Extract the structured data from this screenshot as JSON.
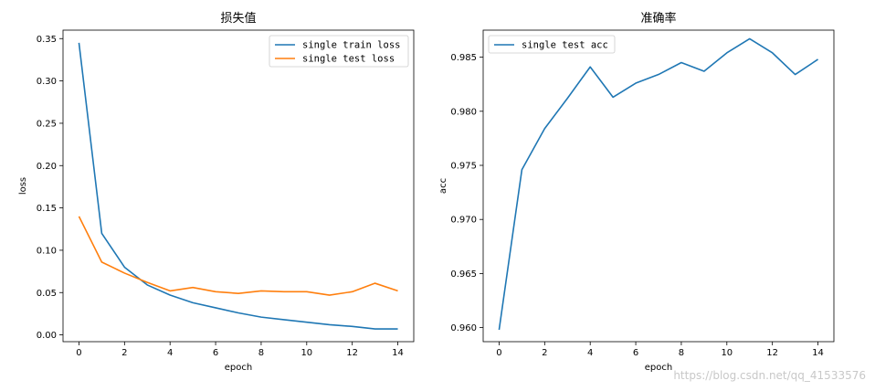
{
  "chart_data": [
    {
      "type": "line",
      "title": "损失值",
      "xlabel": "epoch",
      "ylabel": "loss",
      "xlim": [
        -0.7,
        14.7
      ],
      "ylim": [
        -0.008,
        0.36
      ],
      "xticks": [
        0,
        2,
        4,
        6,
        8,
        10,
        12,
        14
      ],
      "yticks": [
        0.0,
        0.05,
        0.1,
        0.15,
        0.2,
        0.25,
        0.3,
        0.35
      ],
      "ytick_labels": [
        "0.00",
        "0.05",
        "0.10",
        "0.15",
        "0.20",
        "0.25",
        "0.30",
        "0.35"
      ],
      "legend_position": "upper-right",
      "grid": false,
      "x": [
        0,
        1,
        2,
        3,
        4,
        5,
        6,
        7,
        8,
        9,
        10,
        11,
        12,
        13,
        14
      ],
      "series": [
        {
          "name": "single train loss",
          "color": "#1f77b4",
          "values": [
            0.345,
            0.12,
            0.08,
            0.059,
            0.047,
            0.038,
            0.032,
            0.026,
            0.021,
            0.018,
            0.015,
            0.012,
            0.01,
            0.007,
            0.007
          ]
        },
        {
          "name": "single test loss",
          "color": "#ff7f0e",
          "values": [
            0.14,
            0.086,
            0.073,
            0.062,
            0.052,
            0.056,
            0.051,
            0.049,
            0.052,
            0.051,
            0.051,
            0.047,
            0.051,
            0.061,
            0.052
          ]
        }
      ]
    },
    {
      "type": "line",
      "title": "准确率",
      "xlabel": "epoch",
      "ylabel": "acc",
      "xlim": [
        -0.7,
        14.7
      ],
      "ylim": [
        0.9587,
        0.9875
      ],
      "xticks": [
        0,
        2,
        4,
        6,
        8,
        10,
        12,
        14
      ],
      "yticks": [
        0.96,
        0.965,
        0.97,
        0.975,
        0.98,
        0.985
      ],
      "ytick_labels": [
        "0.960",
        "0.965",
        "0.970",
        "0.975",
        "0.980",
        "0.985"
      ],
      "legend_position": "upper-left",
      "grid": false,
      "x": [
        0,
        1,
        2,
        3,
        4,
        5,
        6,
        7,
        8,
        9,
        10,
        11,
        12,
        13,
        14
      ],
      "series": [
        {
          "name": "single test acc",
          "color": "#1f77b4",
          "values": [
            0.9598,
            0.9746,
            0.9784,
            0.9812,
            0.9841,
            0.9813,
            0.9826,
            0.9834,
            0.9845,
            0.9837,
            0.9854,
            0.9867,
            0.9854,
            0.9834,
            0.9848
          ]
        }
      ]
    }
  ],
  "watermark": "https://blog.csdn.net/qq_41533576"
}
